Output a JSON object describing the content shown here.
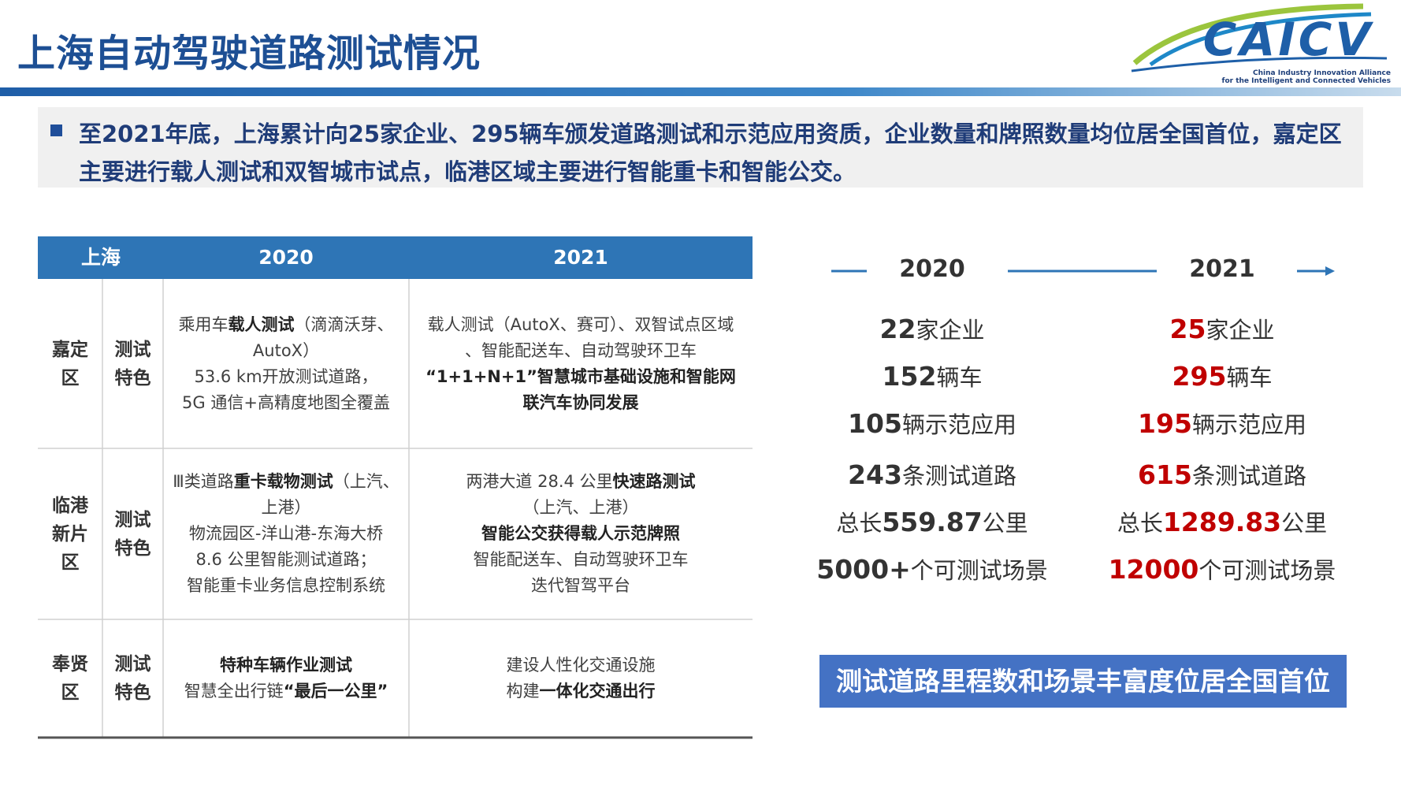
{
  "header": {
    "title": "上海自动驾驶道路测试情况",
    "logo": {
      "name": "CAICV",
      "line1": "China Industry Innovation Alliance",
      "line2": "for the Intelligent and Connected Vehicles"
    }
  },
  "intro": {
    "text": "至2021年底，上海累计向25家企业、295辆车颁发道路测试和示范应用资质，企业数量和牌照数量均位居全国首位，嘉定区主要进行载人测试和双智城市试点，临港区域主要进行智能重卡和智能公交。"
  },
  "table": {
    "headers": [
      "上海",
      "2020",
      "2021"
    ],
    "rows": [
      {
        "district": "嘉定区",
        "label": "测试特色",
        "c2020": [
          [
            {
              "text": "乘用车"
            },
            {
              "text": "载人测试",
              "bold": true
            },
            {
              "text": "（滴滴沃芽、"
            }
          ],
          [
            {
              "text": "AutoX）"
            }
          ],
          [
            {
              "text": "53.6 km开放测试道路，"
            }
          ],
          [
            {
              "text": "5G 通信+高精度地图全覆盖"
            }
          ]
        ],
        "c2021": [
          [
            {
              "text": "载人测试（AutoX、赛可）、双智试点区域"
            }
          ],
          [
            {
              "text": "、智能配送车、自动驾驶环卫车"
            }
          ],
          [
            {
              "text": "“1+1+N+1”智慧城市基础设施和智能网",
              "bold": true
            }
          ],
          [
            {
              "text": "联汽车协同发展",
              "bold": true
            }
          ]
        ]
      },
      {
        "district": "临港新片区",
        "label": "测试特色",
        "c2020": [
          [
            {
              "text": "Ⅲ类道路"
            },
            {
              "text": "重卡载物测试",
              "bold": true
            },
            {
              "text": "（上汽、"
            }
          ],
          [
            {
              "text": "上港）"
            }
          ],
          [
            {
              "text": "物流园区-洋山港-东海大桥"
            }
          ],
          [
            {
              "text": "8.6 公里智能测试道路；"
            }
          ],
          [
            {
              "text": "智能重卡业务信息控制系统"
            }
          ]
        ],
        "c2021": [
          [
            {
              "text": "两港大道 28.4 公里"
            },
            {
              "text": "快速路测试",
              "bold": true
            }
          ],
          [
            {
              "text": "（上汽、上港）"
            }
          ],
          [
            {
              "text": "智能公交获得载人示范牌照",
              "bold": true
            }
          ],
          [
            {
              "text": "智能配送车、自动驾驶环卫车"
            }
          ],
          [
            {
              "text": "迭代智驾平台"
            }
          ]
        ]
      },
      {
        "district": "奉贤区",
        "label": "测试特色",
        "c2020": [
          [
            {
              "text": "特种车辆作业测试",
              "bold": true
            }
          ],
          [
            {
              "text": "智慧全出行链"
            },
            {
              "text": "“最后一公里”",
              "bold": true
            }
          ]
        ],
        "c2021": [
          [
            {
              "text": "建设人性化交通设施"
            }
          ],
          [
            {
              "text": "构建"
            },
            {
              "text": "一体化交通出行",
              "bold": true
            }
          ]
        ]
      }
    ]
  },
  "comparison": {
    "years": [
      "2020",
      "2021"
    ],
    "columns": [
      {
        "num_color": "#333333",
        "stats": [
          {
            "num": "22",
            "unit": "家企业"
          },
          {
            "num": "152",
            "unit": "辆车"
          },
          {
            "num": "105",
            "unit": "辆示范应用"
          },
          {
            "num": "243",
            "unit": "条测试道路"
          },
          {
            "prefix": "总长",
            "num": "559.87",
            "unit": "公里"
          },
          {
            "num": "5000+",
            "unit": "个可测试场景"
          }
        ]
      },
      {
        "num_color": "#c00000",
        "stats": [
          {
            "num": "25",
            "unit": "家企业"
          },
          {
            "num": "295",
            "unit": "辆车"
          },
          {
            "num": "195",
            "unit": "辆示范应用"
          },
          {
            "num": "615",
            "unit": "条测试道路"
          },
          {
            "prefix": "总长",
            "num": "1289.83",
            "unit": "公里"
          },
          {
            "num": "12000",
            "unit": "个可测试场景"
          }
        ]
      }
    ],
    "banner": "测试道路里程数和场景丰富度位居全国首位"
  }
}
